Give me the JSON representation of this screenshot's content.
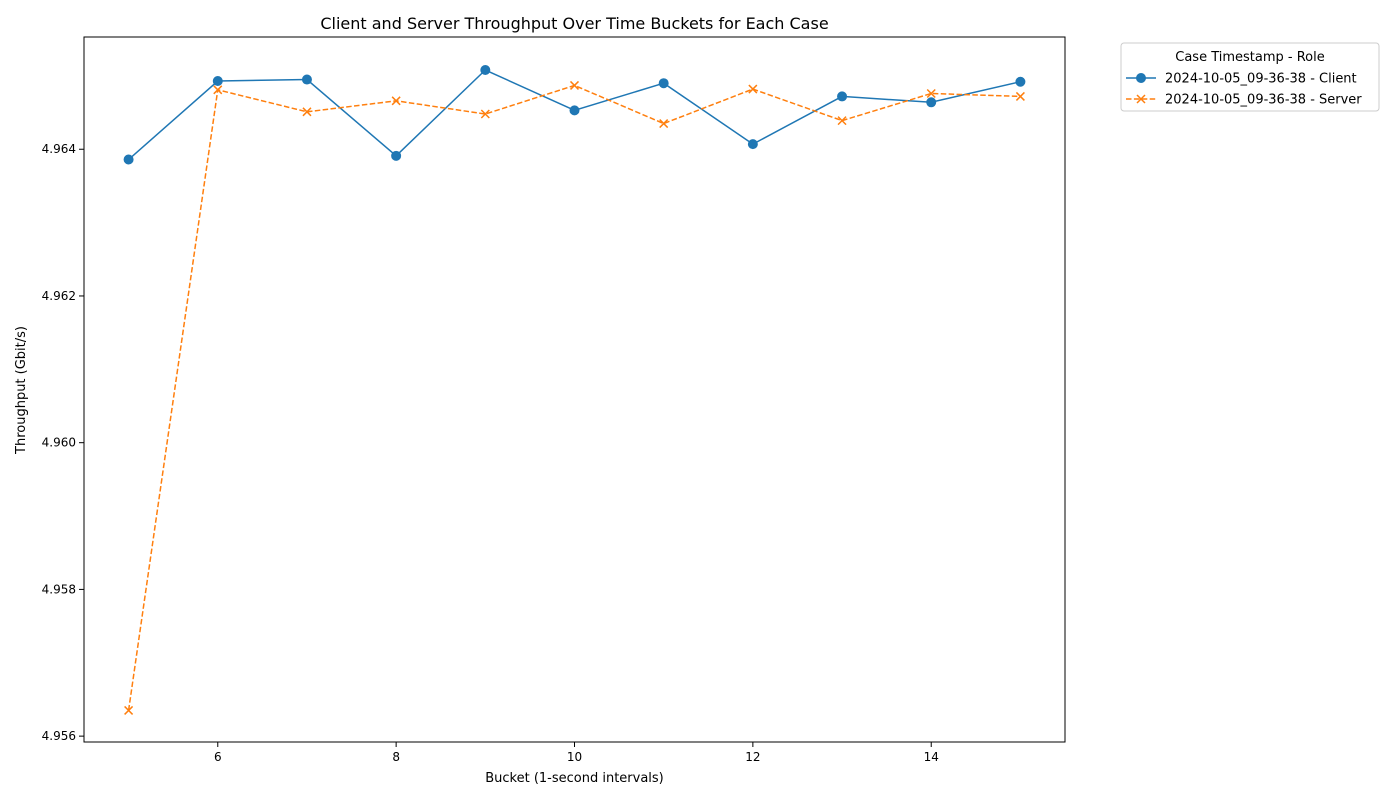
{
  "chart_data": {
    "type": "line",
    "title": "Client and Server Throughput Over Time Buckets for Each Case",
    "xlabel": "Bucket (1-second intervals)",
    "ylabel": "Throughput (Gbit/s)",
    "xlim": [
      4.5,
      15.5
    ],
    "ylim": [
      4.95592,
      4.96553
    ],
    "xticks": [
      6,
      8,
      10,
      12,
      14
    ],
    "xtick_labels": [
      "6",
      "8",
      "10",
      "12",
      "14"
    ],
    "yticks": [
      4.956,
      4.958,
      4.96,
      4.962,
      4.964
    ],
    "ytick_labels": [
      "4.956",
      "4.958",
      "4.960",
      "4.962",
      "4.964"
    ],
    "grid": false,
    "legend": {
      "title": "Case Timestamp - Role",
      "placement": "outside-top-right"
    },
    "x": [
      5,
      6,
      7,
      8,
      9,
      10,
      11,
      12,
      13,
      14,
      15
    ],
    "series": [
      {
        "name": "2024-10-05_09-36-38 - Client",
        "color": "#1f77b4",
        "line_style": "solid",
        "marker": "circle",
        "values": [
          4.96386,
          4.96493,
          4.96495,
          4.96391,
          4.96508,
          4.96453,
          4.9649,
          4.96407,
          4.96472,
          4.96464,
          4.96492
        ]
      },
      {
        "name": "2024-10-05_09-36-38 - Server",
        "color": "#ff7f0e",
        "line_style": "dashed",
        "marker": "x",
        "values": [
          4.95635,
          4.96481,
          4.96451,
          4.96466,
          4.96448,
          4.96487,
          4.96435,
          4.96482,
          4.96439,
          4.96476,
          4.96472
        ]
      }
    ]
  }
}
